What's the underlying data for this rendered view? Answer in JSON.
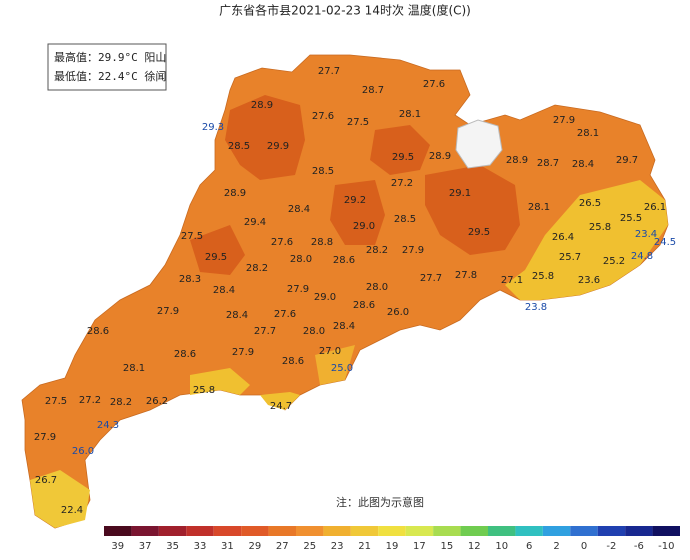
{
  "header": {
    "title": "广东省各市县2021-02-23 14时次 温度(度(C))"
  },
  "extremes": {
    "max": "最高值：29.9°C 阳山",
    "min": "最低值：22.4°C 徐闻"
  },
  "stations": [
    "27.7",
    "27.6",
    "28.7",
    "28.9",
    "27.6",
    "28.1",
    "27.5",
    "29.3",
    "27.9",
    "28.1",
    "28.5",
    "29.9",
    "29.5",
    "28.9",
    "28.9",
    "28.7",
    "28.4",
    "29.7",
    "28.5",
    "27.2",
    "28.9",
    "29.1",
    "29.2",
    "28.4",
    "28.5",
    "28.1",
    "26.5",
    "26.1",
    "25.5",
    "29.4",
    "29.0",
    "25.8",
    "27.5",
    "28.8",
    "27.6",
    "29.5",
    "26.4",
    "23.4",
    "24.5",
    "28.2",
    "27.9",
    "28.6",
    "28.0",
    "29.5",
    "25.7",
    "24.8",
    "25.2",
    "28.2",
    "27.7",
    "27.8",
    "27.1",
    "25.8",
    "23.6",
    "28.3",
    "28.4",
    "28.0",
    "27.9",
    "29.0",
    "28.6",
    "23.8",
    "27.9",
    "28.4",
    "27.6",
    "26.0",
    "27.7",
    "28.0",
    "28.4",
    "28.6",
    "28.6",
    "27.9",
    "28.6",
    "27.0",
    "25.0",
    "28.1",
    "25.8",
    "27.5",
    "27.2",
    "28.2",
    "26.2",
    "24.7",
    "24.3",
    "27.9",
    "26.0",
    "26.7",
    "22.4"
  ],
  "note": "注：此图为示意图",
  "legend": {
    "labels": [
      "39",
      "37",
      "35",
      "33",
      "31",
      "29",
      "27",
      "25",
      "23",
      "21",
      "19",
      "17",
      "15",
      "12",
      "10",
      "6",
      "2",
      "0",
      "-2",
      "-6",
      "-10"
    ],
    "colors": [
      "#4a0a1e",
      "#7a1530",
      "#a0202c",
      "#c0302a",
      "#d8482a",
      "#e05a28",
      "#e87828",
      "#f09030",
      "#f0b030",
      "#f0c838",
      "#f0e040",
      "#d8e850",
      "#a8dc50",
      "#70cc50",
      "#40c080",
      "#30c0c0",
      "#30a0e0",
      "#3070d0",
      "#2040b0",
      "#182890",
      "#101060"
    ]
  }
}
